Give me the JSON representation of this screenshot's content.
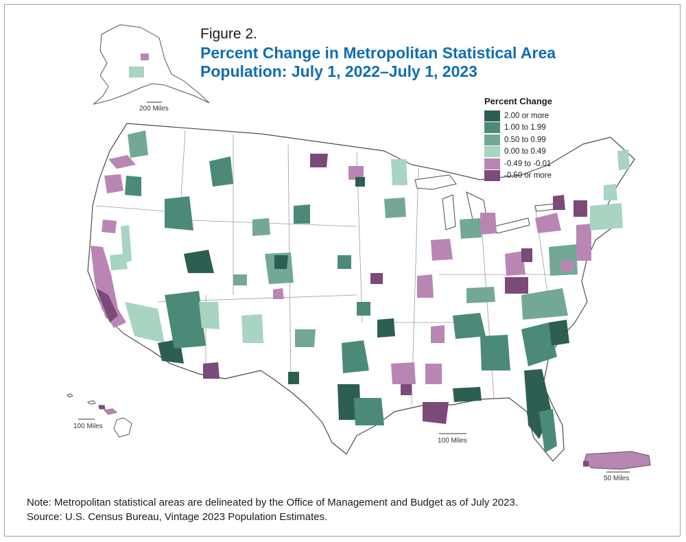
{
  "figure_label": "Figure 2.",
  "title": "Percent Change in Metropolitan Statistical Area Population: July 1, 2022–July 1, 2023",
  "legend": {
    "title": "Percent Change",
    "items": [
      {
        "label": "2.00 or more",
        "color": "#2c5f52"
      },
      {
        "label": "1.00 to 1.99",
        "color": "#4b8a78"
      },
      {
        "label": "0.50 to 0.99",
        "color": "#74a896"
      },
      {
        "label": "0.00 to 0.49",
        "color": "#a8d4c2"
      },
      {
        "label": "-0.49 to -0.01",
        "color": "#b986b3"
      },
      {
        "label": "-0.50 or more",
        "color": "#7b4a78"
      }
    ]
  },
  "scales": {
    "alaska": "200 Miles",
    "hawaii": "100 Miles",
    "conus": "100 Miles",
    "puerto_rico": "50 Miles"
  },
  "note": "Note: Metropolitan statistical areas are delineated by the Office of Management and Budget as of July 2023.",
  "source": "Source: U.S. Census Bureau, Vintage 2023 Population Estimates."
}
